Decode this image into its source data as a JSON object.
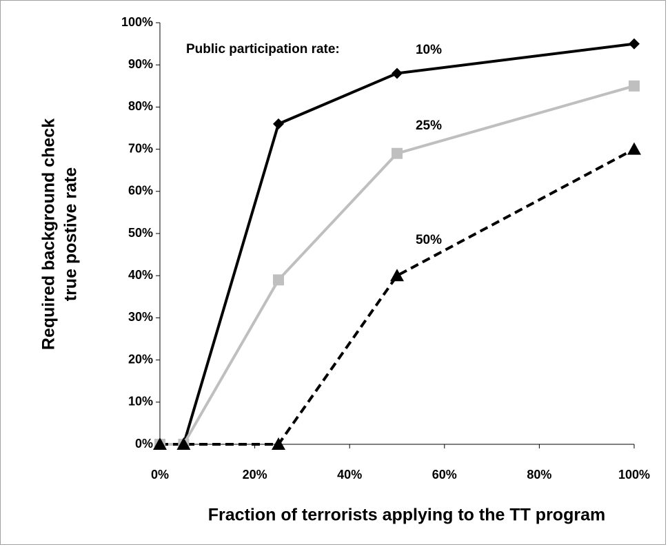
{
  "chart_data": {
    "type": "line",
    "xlabel": "Fraction of terrorists applying to the TT program",
    "ylabel": [
      "Required background check",
      "true postive rate"
    ],
    "annotation": "Public participation rate:",
    "x": [
      0,
      5,
      25,
      50,
      100
    ],
    "series": [
      {
        "name": "10%",
        "color": "#000000",
        "marker": "diamond",
        "dash": false,
        "values": [
          0,
          0,
          76,
          88,
          95
        ]
      },
      {
        "name": "25%",
        "color": "#bfbfbf",
        "marker": "square",
        "dash": false,
        "values": [
          0,
          0,
          39,
          69,
          85
        ]
      },
      {
        "name": "50%",
        "color": "#000000",
        "marker": "triangle",
        "dash": true,
        "values": [
          0,
          0,
          0,
          40,
          70
        ]
      }
    ],
    "xlim": [
      0,
      100
    ],
    "xticks": [
      {
        "value": 0,
        "label": "0%"
      },
      {
        "value": 20,
        "label": "20%"
      },
      {
        "value": 40,
        "label": "40%"
      },
      {
        "value": 60,
        "label": "60%"
      },
      {
        "value": 80,
        "label": "80%"
      },
      {
        "value": 100,
        "label": "100%"
      }
    ],
    "ylim": [
      0,
      100
    ],
    "yticks": [
      {
        "value": 0,
        "label": "0%"
      },
      {
        "value": 10,
        "label": "10%"
      },
      {
        "value": 20,
        "label": "20%"
      },
      {
        "value": 30,
        "label": "30%"
      },
      {
        "value": 40,
        "label": "40%"
      },
      {
        "value": 50,
        "label": "50%"
      },
      {
        "value": 60,
        "label": "60%"
      },
      {
        "value": 70,
        "label": "70%"
      },
      {
        "value": 80,
        "label": "80%"
      },
      {
        "value": 90,
        "label": "90%"
      },
      {
        "value": 100,
        "label": "100%"
      }
    ],
    "grid": false
  }
}
